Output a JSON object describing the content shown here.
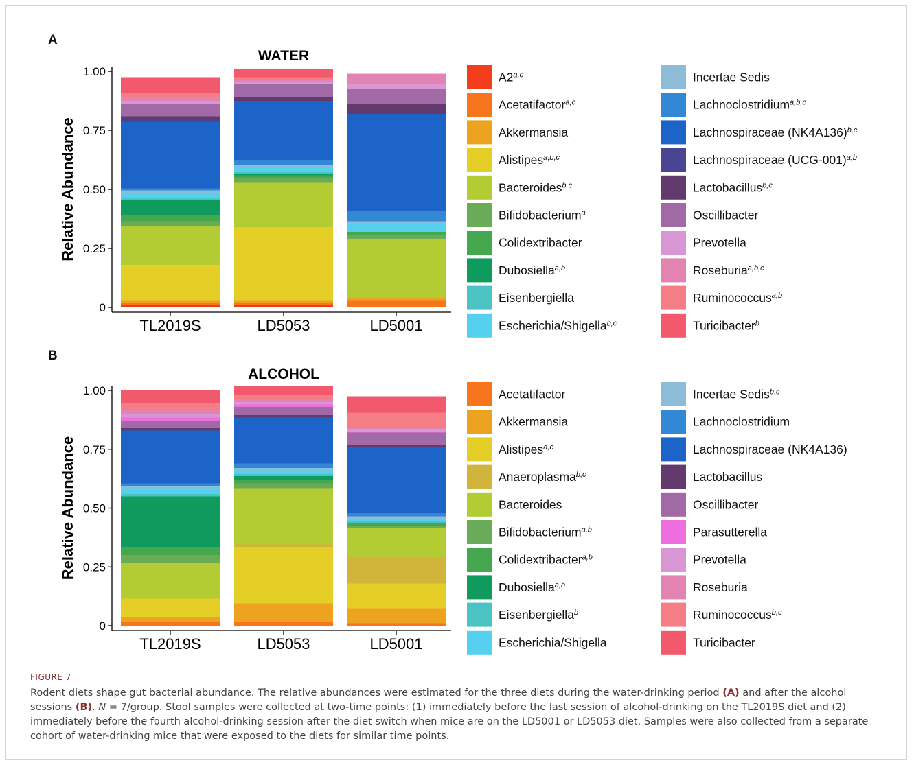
{
  "figure_label": "FIGURE 7",
  "caption": {
    "part1": "Rodent diets shape gut bacterial abundance. The relative abundances were estimated for the three diets during the water-drinking period ",
    "ref_a": "(A)",
    "part2": " and after the alcohol sessions ",
    "ref_b": "(B)",
    "part3": ". ",
    "n_italic": "N",
    "part4": " = 7/group. Stool samples were collected at two-time points: (1) immediately before the last session of alcohol-drinking on the TL2019S diet and (2) immediately before the fourth alcohol-drinking session after the diet switch when mice are on the LD5001 or LD5053 diet. Samples were also collected from a separate cohort of water-drinking mice that were exposed to the diets for similar time points."
  },
  "colors": {
    "A2": "#f23d1c",
    "Acetatifactor": "#f7761b",
    "Akkermansia": "#eea320",
    "Alistipes": "#e5cf27",
    "Anaeroplasma": "#d1b43a",
    "Bacteroides": "#b4cc33",
    "Bifidobacterium": "#6aab57",
    "Colidextribacter": "#46a84e",
    "Dubosiella": "#0f9a5e",
    "Eisenbergiella": "#49c3c3",
    "Escherichia/Shigella": "#55d0ef",
    "Incertae Sedis": "#8dbcd8",
    "Lachnoclostridium": "#3388d6",
    "Lachnospiraceae (NK4A136)": "#1c64c7",
    "Lachnospiraceae (UCG-001)": "#4a4592",
    "Lactobacillus": "#633a6e",
    "Oscillibacter": "#a169a5",
    "Parasutterella": "#ee6ee0",
    "Prevotella": "#d996d4",
    "Roseburia": "#e283b1",
    "Ruminococcus": "#f57d85",
    "Turicibacter": "#f2596c"
  },
  "chart_data": [
    {
      "type": "bar",
      "panel": "A",
      "title": "WATER",
      "ylabel": "Relative Abundance",
      "ylim": [
        0,
        1
      ],
      "yticks": [
        "0",
        "0.25",
        "0.50",
        "0.75",
        "1.00"
      ],
      "categories": [
        "TL2019S",
        "LD5053",
        "LD5001"
      ],
      "legend": [
        {
          "name": "A2",
          "sup": "a,c"
        },
        {
          "name": "Acetatifactor",
          "sup": "a,c"
        },
        {
          "name": "Akkermansia",
          "sup": ""
        },
        {
          "name": "Alistipes",
          "sup": "a,b,c"
        },
        {
          "name": "Bacteroides",
          "sup": "b,c"
        },
        {
          "name": "Bifidobacterium",
          "sup": "a"
        },
        {
          "name": "Colidextribacter",
          "sup": ""
        },
        {
          "name": "Dubosiella",
          "sup": "a,b"
        },
        {
          "name": "Eisenbergiella",
          "sup": ""
        },
        {
          "name": "Escherichia/Shigella",
          "sup": "b,c"
        },
        {
          "name": "Incertae Sedis",
          "sup": ""
        },
        {
          "name": "Lachnoclostridium",
          "sup": "a,b,c"
        },
        {
          "name": "Lachnospiraceae (NK4A136)",
          "sup": "b,c"
        },
        {
          "name": "Lachnospiraceae (UCG-001)",
          "sup": "a,b"
        },
        {
          "name": "Lactobacillus",
          "sup": "b,c"
        },
        {
          "name": "Oscillibacter",
          "sup": ""
        },
        {
          "name": "Prevotella",
          "sup": ""
        },
        {
          "name": "Roseburia",
          "sup": "a,b,c"
        },
        {
          "name": "Ruminococcus",
          "sup": "a,b"
        },
        {
          "name": "Turicibacter",
          "sup": "b"
        }
      ],
      "series": [
        {
          "name": "A2",
          "values": [
            0.01,
            0.01,
            0.0
          ]
        },
        {
          "name": "Acetatifactor",
          "values": [
            0.01,
            0.01,
            0.03
          ]
        },
        {
          "name": "Akkermansia",
          "values": [
            0.01,
            0.01,
            0.01
          ]
        },
        {
          "name": "Alistipes",
          "values": [
            0.15,
            0.31,
            0.0
          ]
        },
        {
          "name": "Bacteroides",
          "values": [
            0.165,
            0.19,
            0.25
          ]
        },
        {
          "name": "Bifidobacterium",
          "values": [
            0.02,
            0.02,
            0.015
          ]
        },
        {
          "name": "Colidextribacter",
          "values": [
            0.025,
            0.01,
            0.015
          ]
        },
        {
          "name": "Dubosiella",
          "values": [
            0.065,
            0.005,
            0.0
          ]
        },
        {
          "name": "Eisenbergiella",
          "values": [
            0.01,
            0.01,
            0.0
          ]
        },
        {
          "name": "Escherichia/Shigella",
          "values": [
            0.02,
            0.02,
            0.035
          ]
        },
        {
          "name": "Incertae Sedis",
          "values": [
            0.01,
            0.01,
            0.01
          ]
        },
        {
          "name": "Lachnoclostridium",
          "values": [
            0.01,
            0.02,
            0.045
          ]
        },
        {
          "name": "Lachnospiraceae (NK4A136)",
          "values": [
            0.28,
            0.25,
            0.41
          ]
        },
        {
          "name": "Lachnospiraceae (UCG-001)",
          "values": [
            0.01,
            0.0,
            0.0
          ]
        },
        {
          "name": "Lactobacillus",
          "values": [
            0.015,
            0.015,
            0.04
          ]
        },
        {
          "name": "Oscillibacter",
          "values": [
            0.05,
            0.055,
            0.065
          ]
        },
        {
          "name": "Prevotella",
          "values": [
            0.015,
            0.01,
            0.02
          ]
        },
        {
          "name": "Roseburia",
          "values": [
            0.015,
            0.01,
            0.045
          ]
        },
        {
          "name": "Ruminococcus",
          "values": [
            0.02,
            0.01,
            0.0
          ]
        },
        {
          "name": "Turicibacter",
          "values": [
            0.065,
            0.035,
            0.0
          ]
        }
      ]
    },
    {
      "type": "bar",
      "panel": "B",
      "title": "ALCOHOL",
      "ylabel": "Relative Abundance",
      "ylim": [
        0,
        1
      ],
      "yticks": [
        "0",
        "0.25",
        "0.50",
        "0.75",
        "1.00"
      ],
      "categories": [
        "TL2019S",
        "LD5053",
        "LD5001"
      ],
      "legend": [
        {
          "name": "Acetatifactor",
          "sup": ""
        },
        {
          "name": "Akkermansia",
          "sup": ""
        },
        {
          "name": "Alistipes",
          "sup": "a,c"
        },
        {
          "name": "Anaeroplasma",
          "sup": "b,c"
        },
        {
          "name": "Bacteroides",
          "sup": ""
        },
        {
          "name": "Bifidobacterium",
          "sup": "a,b"
        },
        {
          "name": "Colidextribacter",
          "sup": "a,b"
        },
        {
          "name": "Dubosiella",
          "sup": "a,b"
        },
        {
          "name": "Eisenbergiella",
          "sup": "b"
        },
        {
          "name": "Escherichia/Shigella",
          "sup": ""
        },
        {
          "name": "Incertae Sedis",
          "sup": "b,c"
        },
        {
          "name": "Lachnoclostridium",
          "sup": ""
        },
        {
          "name": "Lachnospiraceae (NK4A136)",
          "sup": ""
        },
        {
          "name": "Lactobacillus",
          "sup": ""
        },
        {
          "name": "Oscillibacter",
          "sup": ""
        },
        {
          "name": "Parasutterella",
          "sup": ""
        },
        {
          "name": "Prevotella",
          "sup": ""
        },
        {
          "name": "Roseburia",
          "sup": ""
        },
        {
          "name": "Ruminococcus",
          "sup": "b,c"
        },
        {
          "name": "Turicibacter",
          "sup": ""
        }
      ],
      "series": [
        {
          "name": "Acetatifactor",
          "values": [
            0.015,
            0.015,
            0.01
          ]
        },
        {
          "name": "Akkermansia",
          "values": [
            0.02,
            0.08,
            0.065
          ]
        },
        {
          "name": "Alistipes",
          "values": [
            0.08,
            0.24,
            0.105
          ]
        },
        {
          "name": "Anaeroplasma",
          "values": [
            0.0,
            0.01,
            0.11
          ]
        },
        {
          "name": "Bacteroides",
          "values": [
            0.15,
            0.24,
            0.125
          ]
        },
        {
          "name": "Bifidobacterium",
          "values": [
            0.035,
            0.02,
            0.01
          ]
        },
        {
          "name": "Colidextribacter",
          "values": [
            0.035,
            0.015,
            0.01
          ]
        },
        {
          "name": "Dubosiella",
          "values": [
            0.215,
            0.015,
            0.0
          ]
        },
        {
          "name": "Eisenbergiella",
          "values": [
            0.01,
            0.01,
            0.01
          ]
        },
        {
          "name": "Escherichia/Shigella",
          "values": [
            0.025,
            0.015,
            0.01
          ]
        },
        {
          "name": "Incertae Sedis",
          "values": [
            0.01,
            0.01,
            0.01
          ]
        },
        {
          "name": "Lachnoclostridium",
          "values": [
            0.01,
            0.02,
            0.015
          ]
        },
        {
          "name": "Lachnospiraceae (NK4A136)",
          "values": [
            0.225,
            0.195,
            0.28
          ]
        },
        {
          "name": "Lactobacillus",
          "values": [
            0.01,
            0.01,
            0.01
          ]
        },
        {
          "name": "Oscillibacter",
          "values": [
            0.03,
            0.035,
            0.05
          ]
        },
        {
          "name": "Parasutterella",
          "values": [
            0.015,
            0.01,
            0.005
          ]
        },
        {
          "name": "Prevotella",
          "values": [
            0.015,
            0.01,
            0.01
          ]
        },
        {
          "name": "Roseburia",
          "values": [
            0.015,
            0.01,
            0.005
          ]
        },
        {
          "name": "Ruminococcus",
          "values": [
            0.03,
            0.02,
            0.065
          ]
        },
        {
          "name": "Turicibacter",
          "values": [
            0.055,
            0.04,
            0.07
          ]
        }
      ]
    }
  ]
}
